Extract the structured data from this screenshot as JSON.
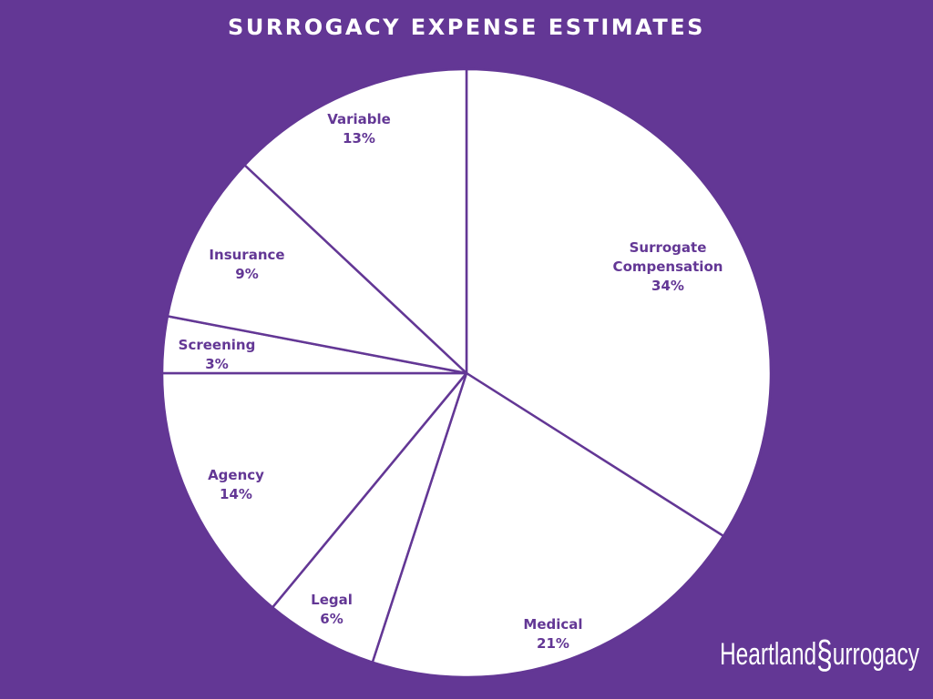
{
  "title": "SURROGACY EXPENSE ESTIMATES",
  "logo": {
    "text": "Heartland Surrogacy",
    "part1": "Heartland",
    "part2": "urrogacy",
    "icon": "heart-s-icon"
  },
  "colors": {
    "background": "#633795",
    "slice_fill": "#ffffff",
    "stroke": "#633795",
    "label": "#633795"
  },
  "chart_data": {
    "type": "pie",
    "title": "SURROGACY EXPENSE ESTIMATES",
    "start_angle": "12 o'clock, clockwise",
    "slices": [
      {
        "label": "Surrogate Compensation",
        "value": 34
      },
      {
        "label": "Medical",
        "value": 21
      },
      {
        "label": "Legal",
        "value": 6
      },
      {
        "label": "Agency",
        "value": 14
      },
      {
        "label": "Screening",
        "value": 3
      },
      {
        "label": "Insurance",
        "value": 9
      },
      {
        "label": "Variable",
        "value": 13
      }
    ],
    "legend": "none (labels inside slices)"
  },
  "labels": [
    {
      "name": "Surrogate",
      "name2": "Compensation",
      "pct": "34%"
    },
    {
      "name": "Medical",
      "pct": "21%"
    },
    {
      "name": "Legal",
      "pct": "6%"
    },
    {
      "name": "Agency",
      "pct": "14%"
    },
    {
      "name": "Screening",
      "pct": "3%"
    },
    {
      "name": "Insurance",
      "pct": "9%"
    },
    {
      "name": "Variable",
      "pct": "13%"
    }
  ]
}
